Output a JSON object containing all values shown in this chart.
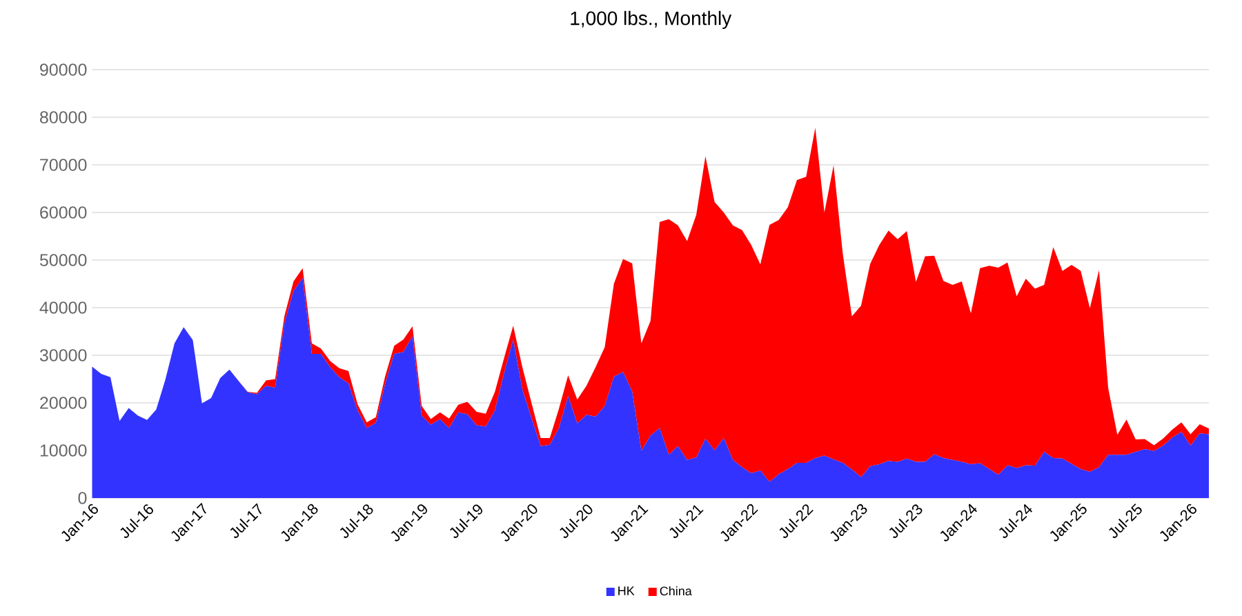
{
  "chart_data": {
    "type": "area",
    "title": "1,000 lbs., Monthly",
    "stacked": true,
    "grid": "y",
    "legend": "bottom",
    "categories": [
      "Jan-16",
      null,
      null,
      null,
      null,
      null,
      "Jul-16",
      null,
      null,
      null,
      null,
      null,
      "Jan-17",
      null,
      null,
      null,
      null,
      null,
      "Jul-17",
      null,
      null,
      null,
      null,
      null,
      "Jan-18",
      null,
      null,
      null,
      null,
      null,
      "Jul-18",
      null,
      null,
      null,
      null,
      null,
      "Jan-19",
      null,
      null,
      null,
      null,
      null,
      "Jul-19",
      null,
      null,
      null,
      null,
      null,
      "Jan-20",
      null,
      null,
      null,
      null,
      null,
      "Jul-20",
      null,
      null,
      null,
      null,
      null,
      "Jan-21",
      null,
      null,
      null,
      null,
      null,
      "Jul-21",
      null,
      null,
      null,
      null,
      null,
      "Jan-22",
      null,
      null,
      null,
      null,
      null,
      "Jul-22",
      null,
      null,
      null,
      null,
      null,
      "Jan-23",
      null,
      null,
      null,
      null,
      null,
      "Jul-23",
      null,
      null,
      null,
      null,
      null,
      "Jan-24",
      null,
      null,
      null,
      null,
      null,
      "Jul-24",
      null,
      null,
      null,
      null,
      null,
      "Jan-25",
      null,
      null,
      null,
      null,
      null,
      "Jul-25",
      null,
      null,
      null,
      null,
      null,
      "Jan-26",
      null,
      null
    ],
    "ylim": [
      0,
      90000
    ],
    "yticks": [
      0,
      10000,
      20000,
      30000,
      40000,
      50000,
      60000,
      70000,
      80000,
      90000
    ],
    "series": [
      {
        "name": "HK",
        "color": "#3333ff",
        "values": [
          27600,
          26100,
          25400,
          16200,
          18900,
          17300,
          16400,
          18600,
          24900,
          32500,
          35900,
          33200,
          19900,
          21000,
          25200,
          27000,
          24600,
          22200,
          21800,
          23600,
          23200,
          36700,
          43500,
          46200,
          30300,
          30300,
          27500,
          25400,
          24100,
          18400,
          14700,
          15800,
          23900,
          30300,
          30700,
          34000,
          17300,
          15400,
          16600,
          14700,
          18000,
          17600,
          15300,
          15000,
          18400,
          26200,
          33300,
          22800,
          16800,
          10900,
          11200,
          14700,
          21500,
          15700,
          17500,
          17100,
          19300,
          25500,
          26500,
          22400,
          9900,
          13100,
          14700,
          9100,
          10900,
          8000,
          8500,
          12500,
          10000,
          12600,
          8000,
          6500,
          5200,
          5800,
          3400,
          5000,
          6100,
          7400,
          7400,
          8400,
          8900,
          8100,
          7400,
          6000,
          4400,
          6700,
          7100,
          7800,
          7600,
          8300,
          7600,
          7600,
          9200,
          8400,
          8000,
          7600,
          7100,
          7300,
          6100,
          4900,
          6900,
          6300,
          6900,
          6800,
          9700,
          8400,
          8300,
          7200,
          6100,
          5500,
          6500,
          9100,
          9100,
          9100,
          9700,
          10300,
          9900,
          11000,
          12700,
          13900,
          11000,
          13600,
          13400
        ]
      },
      {
        "name": "China",
        "color": "#ff0000",
        "values": [
          0,
          0,
          0,
          0,
          0,
          0,
          0,
          0,
          0,
          0,
          0,
          0,
          0,
          0,
          0,
          0,
          0,
          100,
          300,
          1100,
          1800,
          1500,
          2000,
          2100,
          2200,
          1100,
          1300,
          1900,
          2600,
          1300,
          1200,
          1200,
          1600,
          1700,
          2600,
          2100,
          2100,
          1200,
          1400,
          2000,
          1600,
          2600,
          2800,
          2700,
          3900,
          3200,
          2900,
          4700,
          3200,
          1700,
          1400,
          4100,
          4300,
          5000,
          6100,
          10400,
          12400,
          19500,
          23700,
          26900,
          22600,
          24100,
          43300,
          49500,
          46400,
          46000,
          51000,
          59300,
          52200,
          47400,
          49300,
          49800,
          48000,
          43300,
          54000,
          53400,
          55000,
          59400,
          60100,
          69400,
          51100,
          61800,
          44000,
          32200,
          36000,
          42500,
          46100,
          48400,
          46800,
          47800,
          37800,
          43200,
          41700,
          37200,
          36800,
          37900,
          31700,
          41000,
          42700,
          43500,
          42600,
          36100,
          39200,
          37200,
          35100,
          44300,
          39400,
          41800,
          41600,
          34400,
          41400,
          14000,
          4200,
          7400,
          2600,
          2100,
          1200,
          1500,
          1700,
          2000,
          2400,
          1900,
          1200
        ]
      }
    ]
  }
}
